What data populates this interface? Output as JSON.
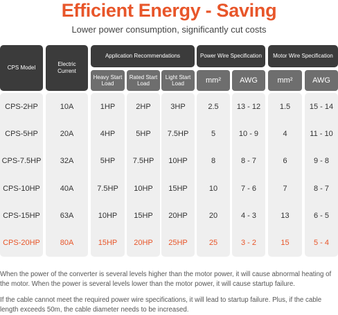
{
  "header": {
    "title": "Efficient Energy - Saving",
    "subtitle": "Lower power consumption, significantly cut costs"
  },
  "table": {
    "header": {
      "model": "CPS Model",
      "current": "Electric Current",
      "application": {
        "title": "Application Recommendations",
        "sub": [
          "Heavy Start Load",
          "Rated Start Load",
          "Light Start Load"
        ]
      },
      "power_wire": {
        "title": "Power Wire Specification",
        "sub": [
          "mm²",
          "AWG"
        ]
      },
      "motor_wire": {
        "title": "Motor Wire Specification",
        "sub": [
          "mm²",
          "AWG"
        ]
      }
    },
    "rows": [
      [
        "CPS-2HP",
        "10A",
        "1HP",
        "2HP",
        "3HP",
        "2.5",
        "13 - 12",
        "1.5",
        "15 - 14"
      ],
      [
        "CPS-5HP",
        "20A",
        "4HP",
        "5HP",
        "7.5HP",
        "5",
        "10 - 9",
        "4",
        "11 - 10"
      ],
      [
        "CPS-7.5HP",
        "32A",
        "5HP",
        "7.5HP",
        "10HP",
        "8",
        "8 - 7",
        "6",
        "9 - 8"
      ],
      [
        "CPS-10HP",
        "40A",
        "7.5HP",
        "10HP",
        "15HP",
        "10",
        "7 - 6",
        "7",
        "8 - 7"
      ],
      [
        "CPS-15HP",
        "63A",
        "10HP",
        "15HP",
        "20HP",
        "20",
        "4 - 3",
        "13",
        "6 - 5"
      ],
      [
        "CPS-20HP",
        "80A",
        "15HP",
        "20HP",
        "25HP",
        "25",
        "3 - 2",
        "15",
        "5 - 4"
      ]
    ]
  },
  "notes": [
    "When the power of the converter is several levels higher than the motor power, it will cause abnormal heating of the motor. When the power is several levels lower than the motor power, it will cause startup failure.",
    "If the cable cannot meet the required power wire specifications, it will lead to startup failure. Plus, if the cable length exceeds 50m, the cable diameter needs to be increased."
  ]
}
